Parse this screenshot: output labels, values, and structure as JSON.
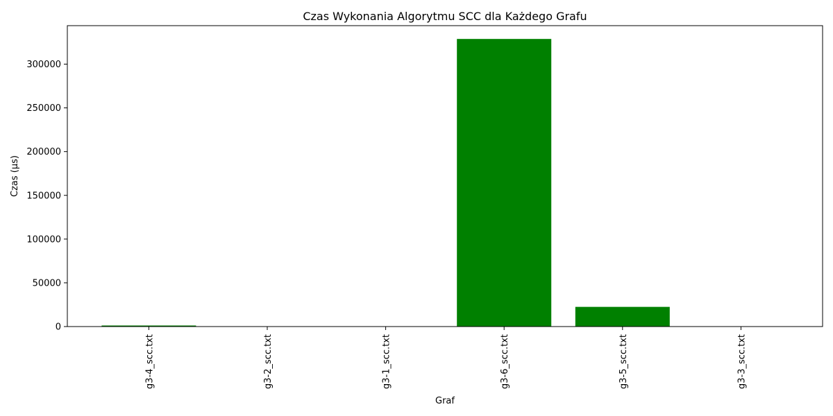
{
  "chart_data": {
    "type": "bar",
    "title": "Czas Wykonania Algorytmu SCC dla Każdego Grafu",
    "xlabel": "Graf",
    "ylabel": "Czas (µs)",
    "categories": [
      "g3-4_scc.txt",
      "g3-2_scc.txt",
      "g3-1_scc.txt",
      "g3-6_scc.txt",
      "g3-5_scc.txt",
      "g3-3_scc.txt"
    ],
    "values": [
      1200,
      150,
      60,
      328800,
      22500,
      100
    ],
    "ylim": [
      0,
      344000
    ],
    "yticks": [
      0,
      50000,
      100000,
      150000,
      200000,
      250000,
      300000
    ],
    "bar_color": "#008000",
    "grid": false,
    "legend": "none"
  }
}
